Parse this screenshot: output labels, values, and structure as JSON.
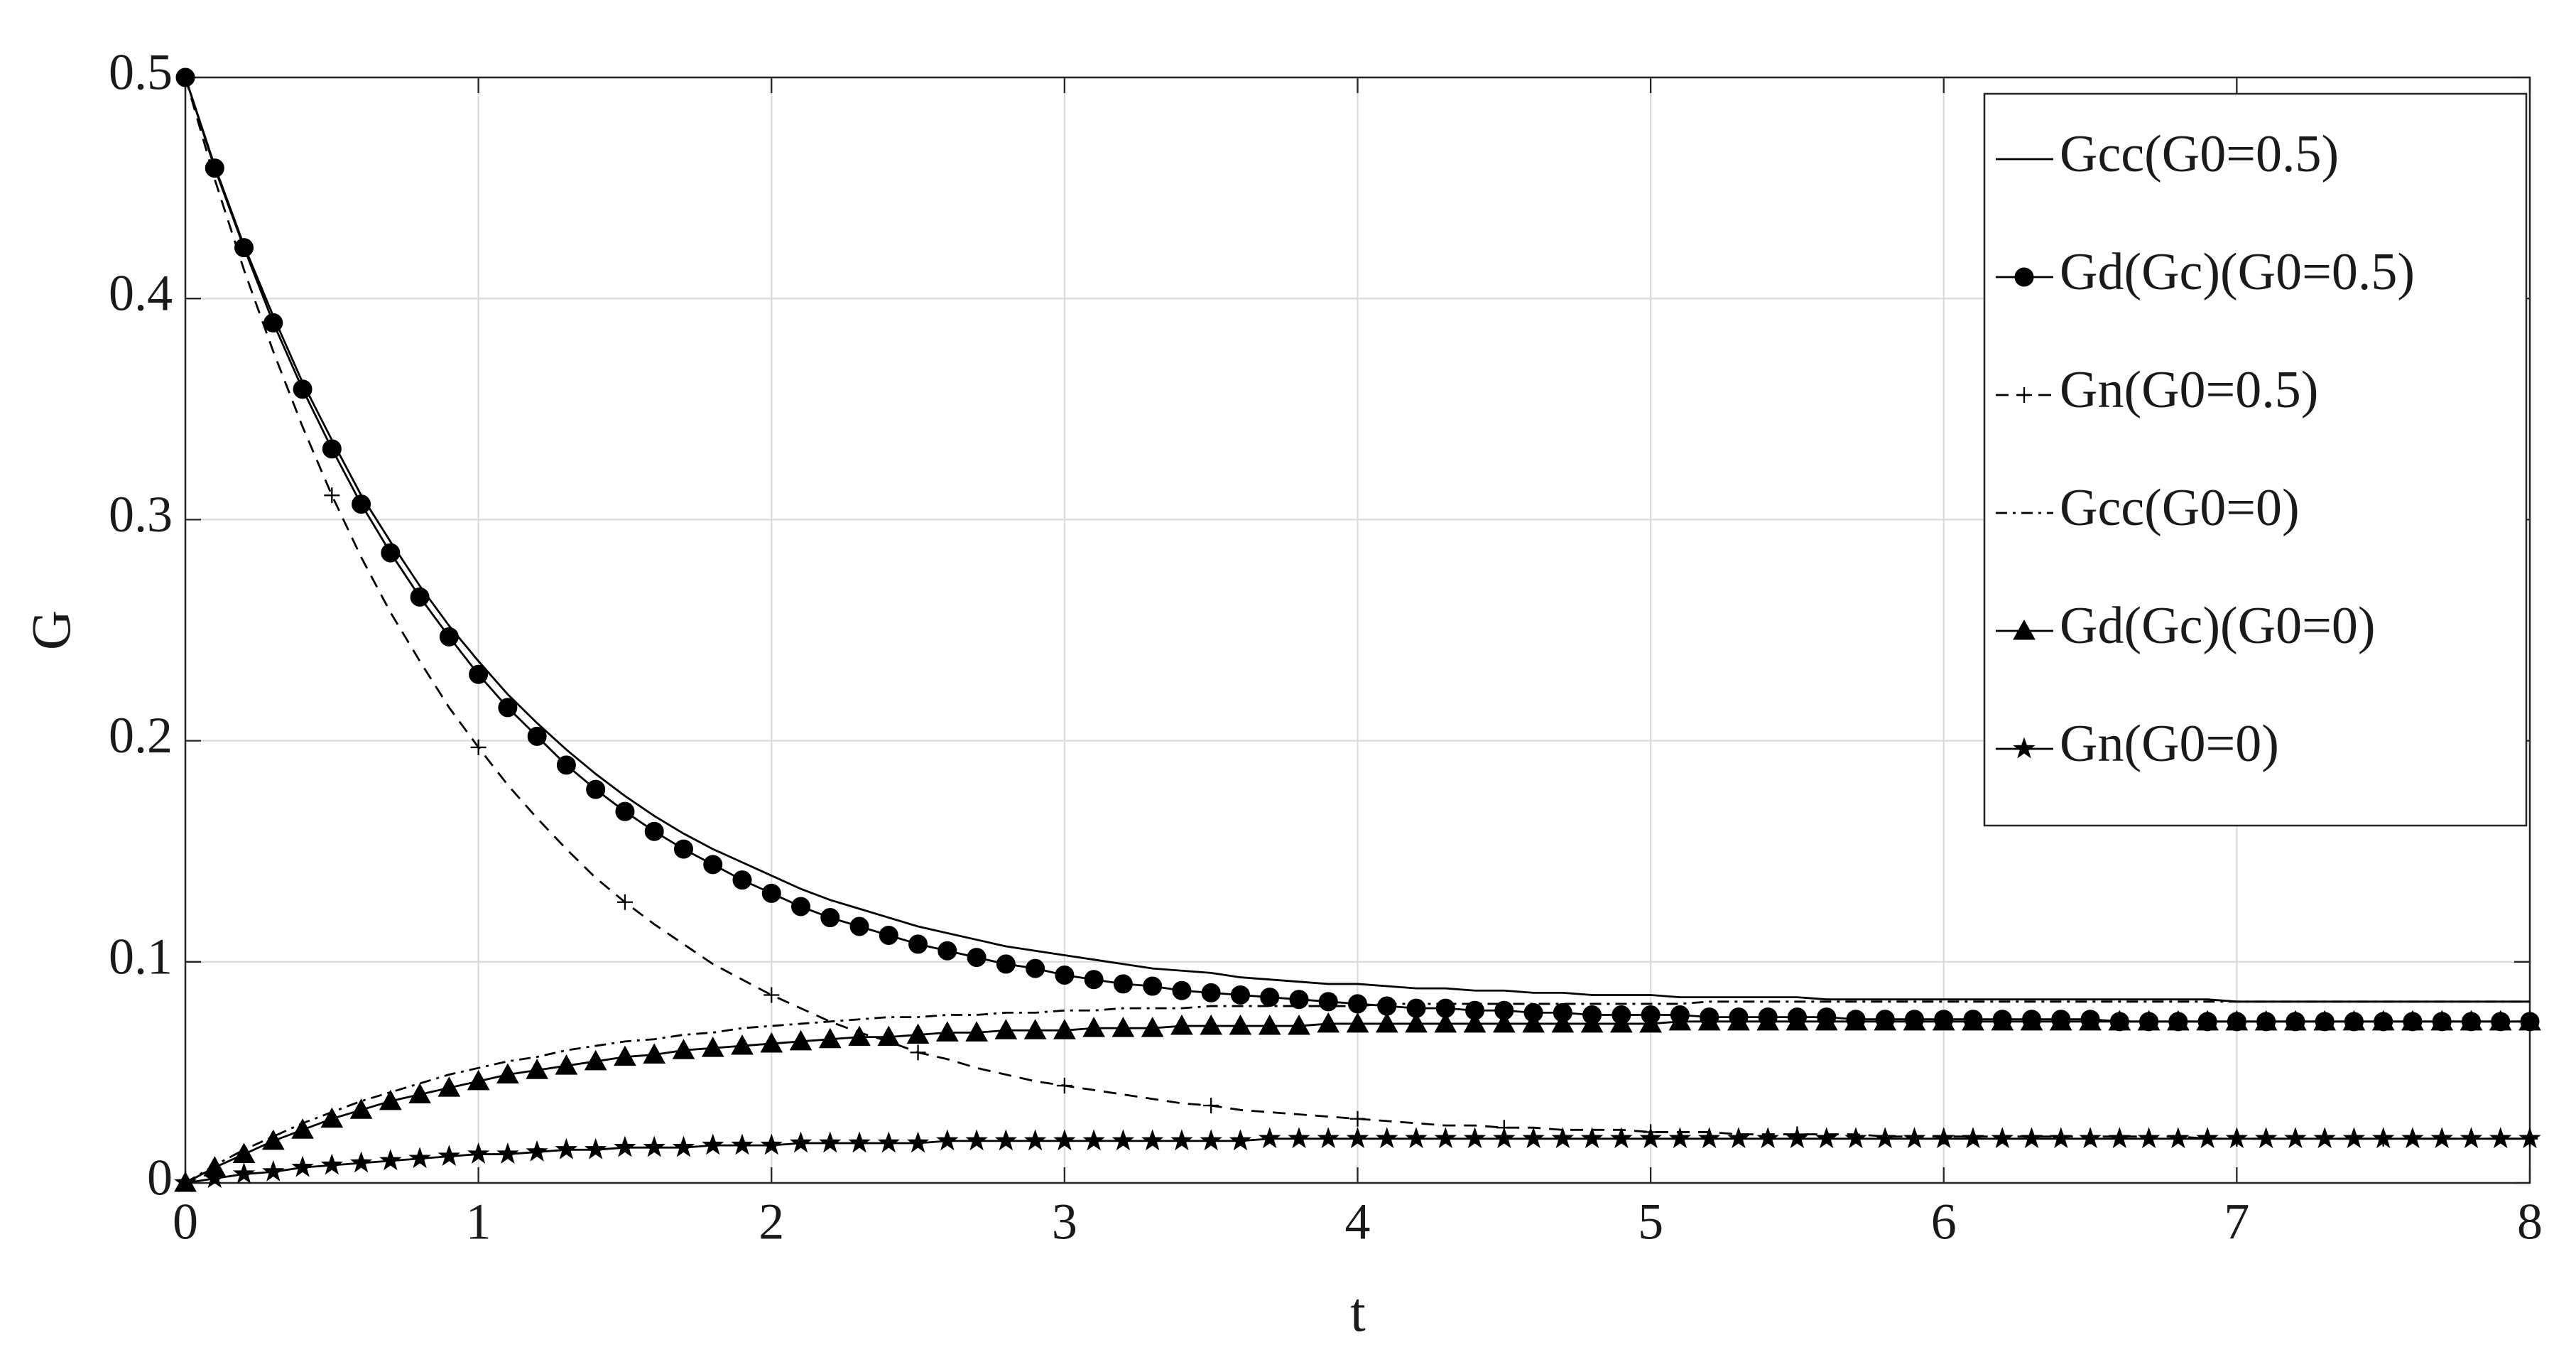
{
  "chart_data": {
    "type": "line",
    "xlabel": "t",
    "ylabel": "G",
    "xlim": [
      0,
      8
    ],
    "ylim": [
      0,
      0.5
    ],
    "xticks": [
      0,
      1,
      2,
      3,
      4,
      5,
      6,
      7,
      8
    ],
    "yticks": [
      0,
      0.1,
      0.2,
      0.3,
      0.4,
      0.5
    ],
    "grid": true,
    "legend_position": "upper right",
    "x": [
      0,
      0.1,
      0.2,
      0.3,
      0.4,
      0.5,
      0.6,
      0.7,
      0.8,
      0.9,
      1,
      1.1,
      1.2,
      1.3,
      1.4,
      1.5,
      1.6,
      1.7,
      1.8,
      1.9,
      2,
      2.1,
      2.2,
      2.3,
      2.4,
      2.5,
      2.6,
      2.7,
      2.8,
      2.9,
      3,
      3.1,
      3.2,
      3.3,
      3.4,
      3.5,
      3.6,
      3.7,
      3.8,
      3.9,
      4,
      4.1,
      4.2,
      4.3,
      4.4,
      4.5,
      4.6,
      4.7,
      4.8,
      4.9,
      5,
      5.1,
      5.2,
      5.3,
      5.4,
      5.5,
      5.6,
      5.7,
      5.8,
      5.9,
      6,
      6.1,
      6.2,
      6.3,
      6.4,
      6.5,
      6.6,
      6.7,
      6.8,
      6.9,
      7,
      7.1,
      7.2,
      7.3,
      7.4,
      7.5,
      7.6,
      7.7,
      7.8,
      7.9,
      8
    ],
    "series": [
      {
        "name": "Gcc(G0=0.5)",
        "color": "#000000",
        "dash": "solid",
        "marker": "none",
        "values": [
          0.5,
          0.46,
          0.424,
          0.392,
          0.362,
          0.336,
          0.311,
          0.29,
          0.27,
          0.252,
          0.236,
          0.221,
          0.208,
          0.196,
          0.185,
          0.175,
          0.166,
          0.158,
          0.151,
          0.145,
          0.139,
          0.133,
          0.128,
          0.124,
          0.12,
          0.116,
          0.113,
          0.11,
          0.107,
          0.105,
          0.103,
          0.101,
          0.099,
          0.097,
          0.096,
          0.095,
          0.093,
          0.092,
          0.091,
          0.09,
          0.09,
          0.089,
          0.088,
          0.088,
          0.087,
          0.087,
          0.086,
          0.086,
          0.085,
          0.085,
          0.085,
          0.084,
          0.084,
          0.084,
          0.084,
          0.084,
          0.083,
          0.083,
          0.083,
          0.083,
          0.083,
          0.083,
          0.083,
          0.083,
          0.083,
          0.083,
          0.083,
          0.083,
          0.083,
          0.083,
          0.082,
          0.082,
          0.082,
          0.082,
          0.082,
          0.082,
          0.082,
          0.082,
          0.082,
          0.082,
          0.082
        ]
      },
      {
        "name": "Gd(Gc)(G0=0.5)",
        "color": "#000000",
        "dash": "solid",
        "marker": "circle",
        "values": [
          0.5,
          0.459,
          0.423,
          0.389,
          0.359,
          0.332,
          0.307,
          0.285,
          0.265,
          0.247,
          0.23,
          0.215,
          0.202,
          0.189,
          0.178,
          0.168,
          0.159,
          0.151,
          0.144,
          0.137,
          0.131,
          0.125,
          0.12,
          0.116,
          0.112,
          0.108,
          0.105,
          0.102,
          0.099,
          0.097,
          0.094,
          0.092,
          0.09,
          0.089,
          0.087,
          0.086,
          0.085,
          0.084,
          0.083,
          0.082,
          0.081,
          0.08,
          0.079,
          0.079,
          0.078,
          0.078,
          0.077,
          0.077,
          0.076,
          0.076,
          0.076,
          0.076,
          0.075,
          0.075,
          0.075,
          0.075,
          0.075,
          0.074,
          0.074,
          0.074,
          0.074,
          0.074,
          0.074,
          0.074,
          0.074,
          0.074,
          0.073,
          0.073,
          0.073,
          0.073,
          0.073,
          0.073,
          0.073,
          0.073,
          0.073,
          0.073,
          0.073,
          0.073,
          0.073,
          0.073,
          0.073
        ]
      },
      {
        "name": "Gn(G0=0.5)",
        "color": "#000000",
        "dash": "dashed",
        "marker": "plus",
        "marker_every": 5,
        "values": [
          0.5,
          0.454,
          0.413,
          0.376,
          0.342,
          0.311,
          0.283,
          0.258,
          0.236,
          0.215,
          0.197,
          0.18,
          0.165,
          0.151,
          0.138,
          0.127,
          0.117,
          0.108,
          0.099,
          0.092,
          0.085,
          0.079,
          0.073,
          0.068,
          0.064,
          0.059,
          0.056,
          0.052,
          0.049,
          0.046,
          0.044,
          0.042,
          0.04,
          0.038,
          0.036,
          0.035,
          0.033,
          0.032,
          0.031,
          0.03,
          0.029,
          0.028,
          0.027,
          0.026,
          0.026,
          0.025,
          0.025,
          0.024,
          0.024,
          0.024,
          0.023,
          0.023,
          0.023,
          0.022,
          0.022,
          0.022,
          0.022,
          0.022,
          0.021,
          0.021,
          0.021,
          0.021,
          0.021,
          0.021,
          0.021,
          0.021,
          0.021,
          0.021,
          0.021,
          0.02,
          0.02,
          0.02,
          0.02,
          0.02,
          0.02,
          0.02,
          0.02,
          0.02,
          0.02,
          0.02,
          0.02
        ]
      },
      {
        "name": "Gcc(G0=0)",
        "color": "#000000",
        "dash": "dashdot",
        "marker": "none",
        "values": [
          0,
          0.008,
          0.015,
          0.021,
          0.027,
          0.032,
          0.037,
          0.041,
          0.045,
          0.049,
          0.052,
          0.055,
          0.057,
          0.06,
          0.062,
          0.064,
          0.065,
          0.067,
          0.068,
          0.07,
          0.071,
          0.072,
          0.073,
          0.074,
          0.075,
          0.075,
          0.076,
          0.076,
          0.077,
          0.077,
          0.078,
          0.078,
          0.079,
          0.079,
          0.079,
          0.08,
          0.08,
          0.08,
          0.08,
          0.08,
          0.08,
          0.081,
          0.081,
          0.081,
          0.081,
          0.081,
          0.081,
          0.081,
          0.081,
          0.081,
          0.081,
          0.081,
          0.082,
          0.082,
          0.082,
          0.082,
          0.082,
          0.082,
          0.082,
          0.082,
          0.082,
          0.082,
          0.082,
          0.082,
          0.082,
          0.082,
          0.082,
          0.082,
          0.082,
          0.082,
          0.082,
          0.082,
          0.082,
          0.082,
          0.082,
          0.082,
          0.082,
          0.082,
          0.082,
          0.082,
          0.082
        ]
      },
      {
        "name": "Gd(Gc)(G0=0)",
        "color": "#000000",
        "dash": "solid",
        "marker": "triangle",
        "values": [
          0,
          0.007,
          0.013,
          0.019,
          0.024,
          0.029,
          0.033,
          0.037,
          0.04,
          0.043,
          0.046,
          0.049,
          0.051,
          0.053,
          0.055,
          0.057,
          0.058,
          0.06,
          0.061,
          0.062,
          0.063,
          0.064,
          0.065,
          0.066,
          0.066,
          0.067,
          0.068,
          0.068,
          0.069,
          0.069,
          0.069,
          0.07,
          0.07,
          0.07,
          0.071,
          0.071,
          0.071,
          0.071,
          0.071,
          0.072,
          0.072,
          0.072,
          0.072,
          0.072,
          0.072,
          0.072,
          0.072,
          0.072,
          0.072,
          0.072,
          0.072,
          0.073,
          0.073,
          0.073,
          0.073,
          0.073,
          0.073,
          0.073,
          0.073,
          0.073,
          0.073,
          0.073,
          0.073,
          0.073,
          0.073,
          0.073,
          0.073,
          0.073,
          0.073,
          0.073,
          0.073,
          0.073,
          0.073,
          0.073,
          0.073,
          0.073,
          0.073,
          0.073,
          0.073,
          0.073,
          0.073
        ]
      },
      {
        "name": "Gn(G0=0)",
        "color": "#000000",
        "dash": "solid",
        "marker": "star",
        "values": [
          0,
          0.002,
          0.004,
          0.005,
          0.007,
          0.008,
          0.009,
          0.01,
          0.011,
          0.012,
          0.013,
          0.013,
          0.014,
          0.015,
          0.015,
          0.016,
          0.016,
          0.016,
          0.017,
          0.017,
          0.017,
          0.018,
          0.018,
          0.018,
          0.018,
          0.018,
          0.019,
          0.019,
          0.019,
          0.019,
          0.019,
          0.019,
          0.019,
          0.019,
          0.019,
          0.019,
          0.019,
          0.02,
          0.02,
          0.02,
          0.02,
          0.02,
          0.02,
          0.02,
          0.02,
          0.02,
          0.02,
          0.02,
          0.02,
          0.02,
          0.02,
          0.02,
          0.02,
          0.02,
          0.02,
          0.02,
          0.02,
          0.02,
          0.02,
          0.02,
          0.02,
          0.02,
          0.02,
          0.02,
          0.02,
          0.02,
          0.02,
          0.02,
          0.02,
          0.02,
          0.02,
          0.02,
          0.02,
          0.02,
          0.02,
          0.02,
          0.02,
          0.02,
          0.02,
          0.02,
          0.02
        ]
      }
    ]
  }
}
